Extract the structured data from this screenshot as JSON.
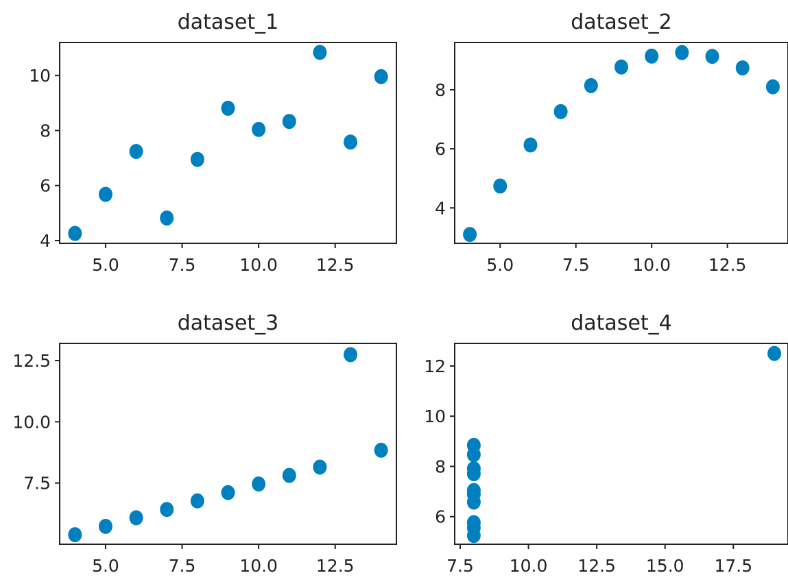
{
  "chart_data": [
    {
      "type": "scatter",
      "title": "dataset_1",
      "x": [
        10,
        8,
        13,
        9,
        11,
        14,
        6,
        4,
        12,
        7,
        5
      ],
      "y": [
        8.04,
        6.95,
        7.58,
        8.81,
        8.33,
        9.96,
        7.24,
        4.26,
        10.84,
        4.82,
        5.68
      ],
      "xlim": [
        3.5,
        14.5
      ],
      "ylim": [
        3.9,
        11.2
      ],
      "xticks": [
        5.0,
        7.5,
        10.0,
        12.5
      ],
      "xtick_labels": [
        "5.0",
        "7.5",
        "10.0",
        "12.5"
      ],
      "yticks": [
        4,
        6,
        8,
        10
      ],
      "ytick_labels": [
        "4",
        "6",
        "8",
        "10"
      ],
      "grid": false,
      "color": "#0080bf"
    },
    {
      "type": "scatter",
      "title": "dataset_2",
      "x": [
        10,
        8,
        13,
        9,
        11,
        14,
        6,
        4,
        12,
        7,
        5
      ],
      "y": [
        9.14,
        8.14,
        8.74,
        8.77,
        9.26,
        8.1,
        6.13,
        3.1,
        9.13,
        7.26,
        4.74
      ],
      "xlim": [
        3.5,
        14.5
      ],
      "ylim": [
        2.8,
        9.6
      ],
      "xticks": [
        5.0,
        7.5,
        10.0,
        12.5
      ],
      "xtick_labels": [
        "5.0",
        "7.5",
        "10.0",
        "12.5"
      ],
      "yticks": [
        4,
        6,
        8
      ],
      "ytick_labels": [
        "4",
        "6",
        "8"
      ],
      "grid": false,
      "color": "#0080bf"
    },
    {
      "type": "scatter",
      "title": "dataset_3",
      "x": [
        10,
        8,
        13,
        9,
        11,
        14,
        6,
        4,
        12,
        7,
        5
      ],
      "y": [
        7.46,
        6.77,
        12.74,
        7.11,
        7.81,
        8.84,
        6.08,
        5.39,
        8.15,
        6.42,
        5.73
      ],
      "xlim": [
        3.5,
        14.5
      ],
      "ylim": [
        5.0,
        13.2
      ],
      "xticks": [
        5.0,
        7.5,
        10.0,
        12.5
      ],
      "xtick_labels": [
        "5.0",
        "7.5",
        "10.0",
        "12.5"
      ],
      "yticks": [
        7.5,
        10.0,
        12.5
      ],
      "ytick_labels": [
        "7.5",
        "10.0",
        "12.5"
      ],
      "grid": false,
      "color": "#0080bf"
    },
    {
      "type": "scatter",
      "title": "dataset_4",
      "x": [
        8,
        8,
        8,
        8,
        8,
        8,
        8,
        19,
        8,
        8,
        8
      ],
      "y": [
        6.58,
        5.76,
        7.71,
        8.84,
        8.47,
        7.04,
        5.25,
        12.5,
        5.56,
        7.91,
        6.89
      ],
      "xlim": [
        7.3,
        19.5
      ],
      "ylim": [
        4.9,
        12.9
      ],
      "xticks": [
        7.5,
        10.0,
        12.5,
        15.0,
        17.5
      ],
      "xtick_labels": [
        "7.5",
        "10.0",
        "12.5",
        "15.0",
        "17.5"
      ],
      "yticks": [
        6,
        8,
        10,
        12
      ],
      "ytick_labels": [
        "6",
        "8",
        "10",
        "12"
      ],
      "grid": false,
      "color": "#0080bf"
    }
  ]
}
